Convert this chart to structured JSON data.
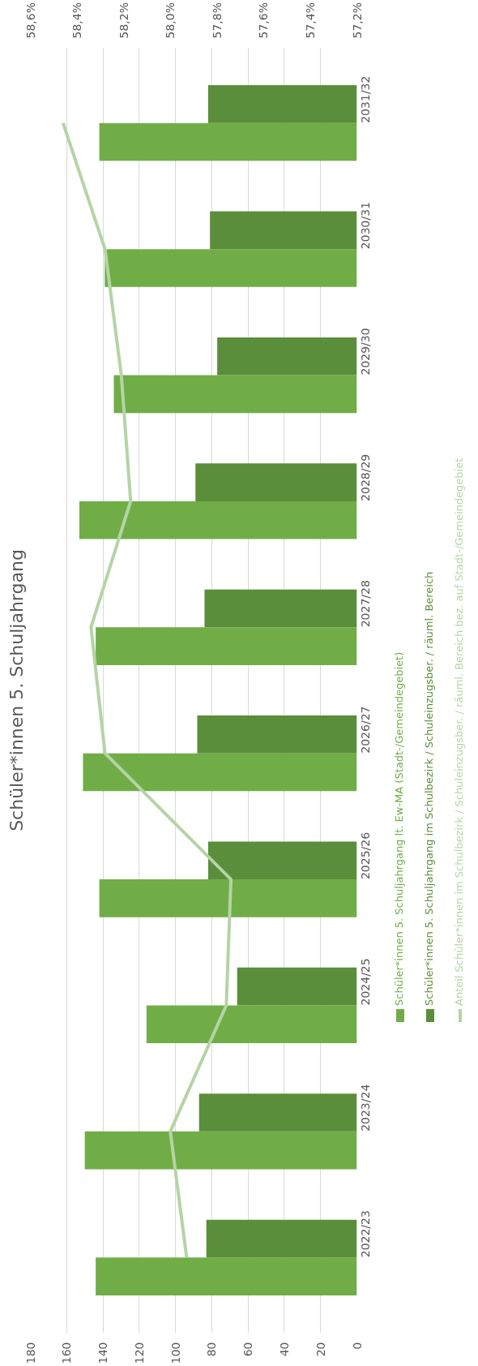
{
  "chart_data": {
    "type": "bar",
    "orientation": "horizontal",
    "title": "Schüler*innen 5. Schuljahrgang",
    "categories": [
      "2031/32",
      "2030/31",
      "2029/30",
      "2028/29",
      "2027/28",
      "2026/27",
      "2025/26",
      "2024/25",
      "2023/24",
      "2022/23"
    ],
    "series": [
      {
        "name": "Schüler*innen 5. Schuljahrgang lt. Ew-MA (Stadt-/Gemeindegebiet)",
        "color": "#70ad47",
        "values": [
          142,
          139,
          134,
          153,
          144,
          151,
          142,
          116,
          150,
          144
        ]
      },
      {
        "name": "Schüler*innen 5. Schuljahrgang im Schulbezirk / Schuleinzugsber. / räuml. Bereich",
        "color": "#5a8e3a",
        "values": [
          82,
          81,
          77,
          89,
          84,
          88,
          82,
          66,
          87,
          83
        ]
      },
      {
        "name": "Anteil Schüler*innen im Schulbezirk / Schuleinzugsber. / räuml. Bereich bez. auf Stadt-/Gemeindegebiet",
        "type": "line",
        "axis": "x2",
        "color": "#b5d4a5",
        "values": [
          58.46,
          58.28,
          58.21,
          58.17,
          58.34,
          58.28,
          57.74,
          57.76,
          58.0,
          57.93
        ]
      }
    ],
    "xlim": [
      180,
      0
    ],
    "xticks": [
      180,
      160,
      140,
      120,
      100,
      80,
      60,
      40,
      20,
      0
    ],
    "x2lim": [
      58.6,
      57.2
    ],
    "x2ticks": [
      {
        "value": 58.6,
        "label": "58,6%"
      },
      {
        "value": 58.4,
        "label": "58,4%"
      },
      {
        "value": 58.2,
        "label": "58,2%"
      },
      {
        "value": 58.0,
        "label": "58,0%"
      },
      {
        "value": 57.8,
        "label": "57,8%"
      },
      {
        "value": 57.6,
        "label": "57,6%"
      },
      {
        "value": 57.4,
        "label": "57,4%"
      },
      {
        "value": 57.2,
        "label": "57,2%"
      }
    ],
    "grid": "x",
    "legend": "right"
  }
}
